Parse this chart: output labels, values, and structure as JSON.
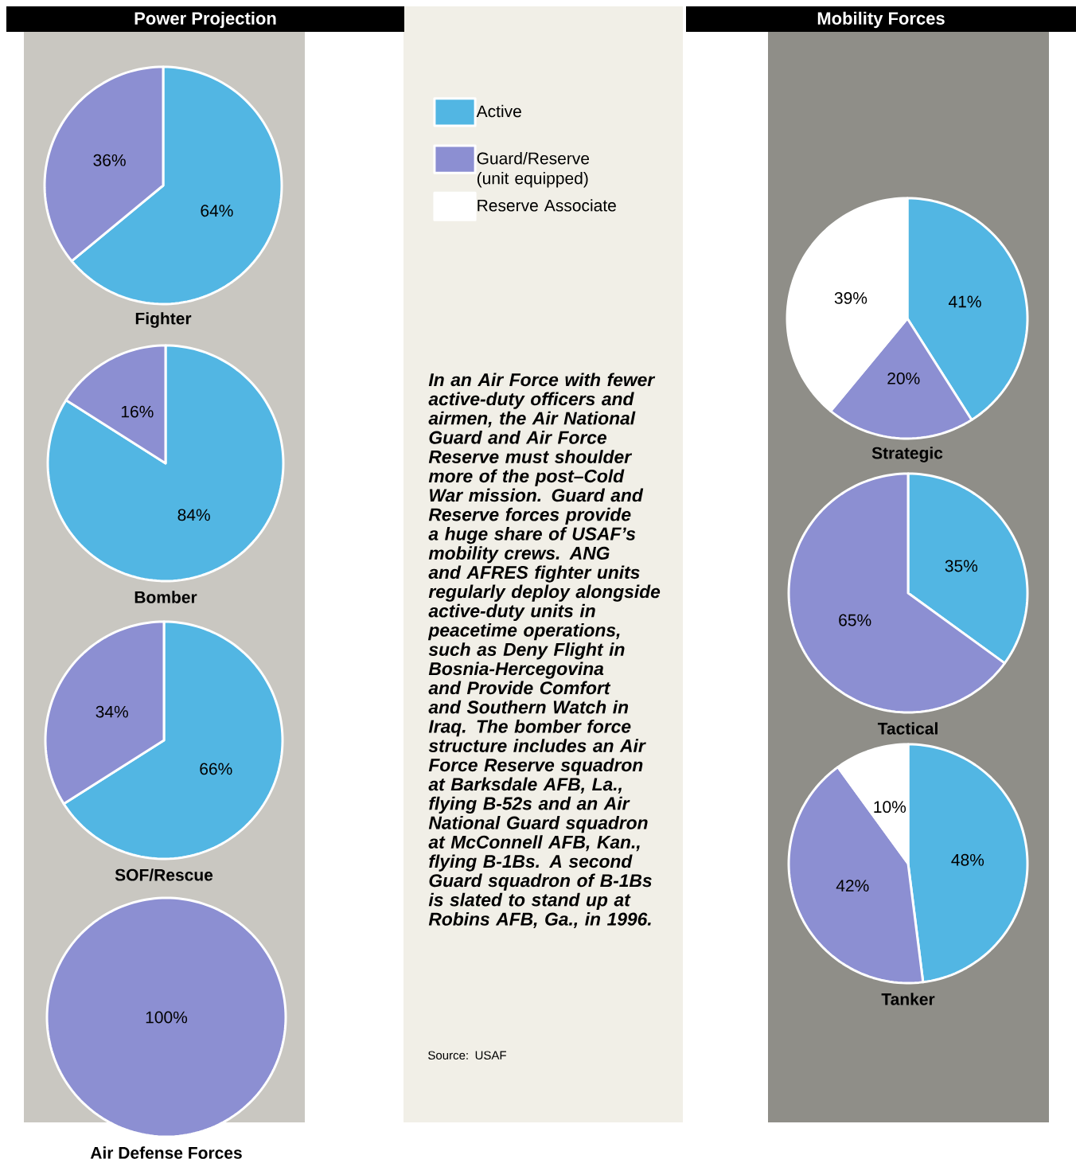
{
  "chart_data": [
    {
      "type": "pie",
      "title": "Power Projection",
      "xlabel": "Fighter",
      "categories": [
        null,
        null,
        null
      ],
      "values": [
        64,
        36,
        0
      ],
      "value_labels": [
        "64%",
        "36%",
        null
      ],
      "colors": [
        "#52b6e3",
        "#8c8fd2",
        "#ffffff"
      ]
    },
    {
      "type": "pie",
      "xlabel": "Bomber",
      "categories": [
        null,
        null,
        null
      ],
      "values": [
        84,
        16,
        0
      ],
      "value_labels": [
        "84%",
        "16%",
        null
      ],
      "colors": [
        "#52b6e3",
        "#8c8fd2",
        "#ffffff"
      ]
    },
    {
      "type": "pie",
      "xlabel": "SOF/Rescue",
      "categories": [
        null,
        null,
        null
      ],
      "values": [
        66,
        34,
        0
      ],
      "value_labels": [
        "66%",
        "34%",
        null
      ],
      "colors": [
        "#52b6e3",
        "#8c8fd2",
        "#ffffff"
      ]
    },
    {
      "type": "pie",
      "xlabel": "Air Defense Forces",
      "categories": [
        null,
        null,
        null
      ],
      "values": [
        0,
        100,
        0
      ],
      "value_labels": [
        null,
        "100%",
        null
      ],
      "colors": [
        "#52b6e3",
        "#8c8fd2",
        "#ffffff"
      ]
    },
    {
      "type": "pie",
      "title": "Mobility Forces",
      "xlabel": "Strategic",
      "categories": [
        "Active",
        "Guard/Reserve (unit equipped)",
        "Reserve Associate"
      ],
      "values": [
        41,
        20,
        39
      ],
      "value_labels": [
        "41%",
        "20%",
        "39%"
      ],
      "colors": [
        "#52b6e3",
        "#8c8fd2",
        "#ffffff"
      ],
      "legend": "left"
    },
    {
      "type": "pie",
      "xlabel": "Tactical",
      "categories": [
        null,
        null,
        null
      ],
      "values": [
        35,
        65,
        0
      ],
      "value_labels": [
        "35%",
        "65%",
        null
      ],
      "colors": [
        "#52b6e3",
        "#8c8fd2",
        "#ffffff"
      ]
    },
    {
      "type": "pie",
      "xlabel": "Tanker",
      "categories": [
        null,
        null,
        null
      ],
      "values": [
        48,
        42,
        10
      ],
      "value_labels": [
        "48%",
        "42%",
        "10%"
      ],
      "colors": [
        "#52b6e3",
        "#8c8fd2",
        "#ffffff"
      ]
    },
    {
      "type": "other",
      "annotations": [
        "In an Air Force with fewer active-duty officers and airmen, the Air National Guard and Air Force Reserve must shoulder more of the post–Cold War mission. Guard and Reserve forces provide a huge share of USAF’s mobility crews. ANG and AFRES fighter units regularly deploy alongside active-duty units in peacetime operations, such as Deny Flight in Bosnia-Hercegovina and Provide Comfort and Southern Watch in Iraq. The bomber force structure includes an Air Force Reserve squadron at Barksdale AFB, La., flying B-52s and an Air National Guard squadron at McConnell AFB, Kan., flying B-1Bs. A second Guard squadron of B-1Bs is slated to stand up at Robins AFB, Ga., in 1996.",
        "Source: USAF"
      ]
    }
  ]
}
